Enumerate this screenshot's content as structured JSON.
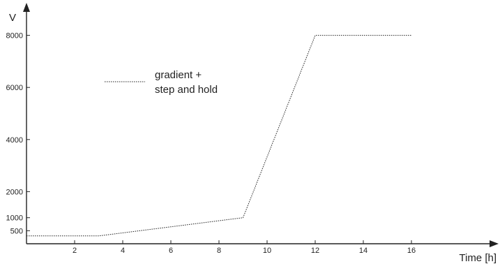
{
  "chart_data": {
    "type": "line",
    "title": "",
    "xlabel": "Time [h]",
    "ylabel": "V",
    "xlim": [
      0,
      19
    ],
    "ylim": [
      0,
      8500
    ],
    "x_ticks": [
      2,
      4,
      6,
      8,
      10,
      12,
      14,
      16
    ],
    "x_tick_labels": [
      "2",
      "4",
      "6",
      "8",
      "10",
      "12",
      "14",
      "16"
    ],
    "y_ticks": [
      500,
      1000,
      2000,
      4000,
      6000,
      8000
    ],
    "y_tick_labels": [
      "500",
      "1000",
      "2000",
      "4000",
      "6000",
      "8000"
    ],
    "grid": false,
    "legend_position": "upper-left",
    "series": [
      {
        "name_lines": [
          "gradient +",
          "step and hold"
        ],
        "color": "#222222",
        "line_style": "dotted",
        "points": [
          {
            "x": 0,
            "y": 300
          },
          {
            "x": 3,
            "y": 300
          },
          {
            "x": 9,
            "y": 1000
          },
          {
            "x": 12,
            "y": 8000
          },
          {
            "x": 16,
            "y": 8000
          }
        ]
      }
    ]
  }
}
